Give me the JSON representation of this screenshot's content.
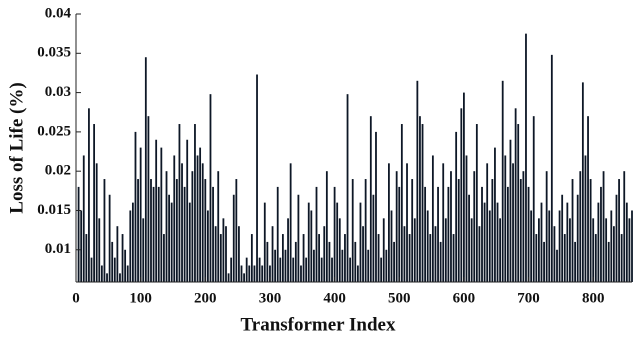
{
  "chart_data": {
    "type": "bar",
    "x_label": "Transformer Index",
    "y_label": "Loss of Life (%)",
    "color": "#0d1726",
    "xlim": [
      0,
      860
    ],
    "xticks": [
      0,
      100,
      200,
      300,
      400,
      500,
      600,
      700,
      800
    ],
    "ylim": [
      0.0059,
      0.04
    ],
    "yticks": [
      0.01,
      0.015,
      0.02,
      0.025,
      0.03,
      0.035,
      0.04
    ],
    "x": [
      4,
      8,
      12,
      16,
      20,
      24,
      28,
      32,
      36,
      40,
      44,
      48,
      52,
      56,
      60,
      64,
      68,
      72,
      76,
      80,
      84,
      88,
      92,
      96,
      100,
      104,
      108,
      112,
      116,
      120,
      124,
      128,
      132,
      136,
      140,
      144,
      148,
      152,
      156,
      160,
      164,
      168,
      172,
      176,
      180,
      184,
      188,
      192,
      196,
      200,
      204,
      208,
      212,
      216,
      220,
      224,
      228,
      232,
      236,
      240,
      244,
      248,
      252,
      256,
      260,
      264,
      268,
      272,
      276,
      280,
      284,
      288,
      292,
      296,
      300,
      304,
      308,
      312,
      316,
      320,
      324,
      328,
      332,
      336,
      340,
      344,
      348,
      352,
      356,
      360,
      364,
      368,
      372,
      376,
      380,
      384,
      388,
      392,
      396,
      400,
      404,
      408,
      412,
      416,
      420,
      424,
      428,
      432,
      436,
      440,
      444,
      448,
      452,
      456,
      460,
      464,
      468,
      472,
      476,
      480,
      484,
      488,
      492,
      496,
      500,
      504,
      508,
      512,
      516,
      520,
      524,
      528,
      532,
      536,
      540,
      544,
      548,
      552,
      556,
      560,
      564,
      568,
      572,
      576,
      580,
      584,
      588,
      592,
      596,
      600,
      604,
      608,
      612,
      616,
      620,
      624,
      628,
      632,
      636,
      640,
      644,
      648,
      652,
      656,
      660,
      664,
      668,
      672,
      676,
      680,
      684,
      688,
      692,
      696,
      700,
      704,
      708,
      712,
      716,
      720,
      724,
      728,
      732,
      736,
      740,
      744,
      748,
      752,
      756,
      760,
      764,
      768,
      772,
      776,
      780,
      784,
      788,
      792,
      796,
      800,
      804,
      808,
      812,
      816,
      820,
      824,
      828,
      832,
      836,
      840,
      844,
      848,
      852,
      856,
      860
    ],
    "values": [
      0.018,
      0.015,
      0.022,
      0.012,
      0.028,
      0.009,
      0.026,
      0.021,
      0.014,
      0.008,
      0.019,
      0.007,
      0.017,
      0.011,
      0.009,
      0.013,
      0.007,
      0.012,
      0.01,
      0.008,
      0.015,
      0.016,
      0.025,
      0.019,
      0.023,
      0.014,
      0.0345,
      0.027,
      0.019,
      0.018,
      0.024,
      0.018,
      0.023,
      0.012,
      0.02,
      0.017,
      0.016,
      0.022,
      0.019,
      0.026,
      0.021,
      0.018,
      0.024,
      0.016,
      0.02,
      0.026,
      0.022,
      0.023,
      0.021,
      0.019,
      0.015,
      0.0298,
      0.018,
      0.013,
      0.02,
      0.012,
      0.014,
      0.013,
      0.007,
      0.009,
      0.017,
      0.019,
      0.013,
      0.008,
      0.007,
      0.009,
      0.008,
      0.012,
      0.008,
      0.0323,
      0.009,
      0.008,
      0.016,
      0.011,
      0.008,
      0.013,
      0.01,
      0.018,
      0.009,
      0.012,
      0.01,
      0.014,
      0.021,
      0.009,
      0.011,
      0.017,
      0.008,
      0.012,
      0.009,
      0.016,
      0.015,
      0.01,
      0.018,
      0.012,
      0.009,
      0.013,
      0.02,
      0.011,
      0.009,
      0.018,
      0.016,
      0.014,
      0.01,
      0.012,
      0.0298,
      0.009,
      0.019,
      0.011,
      0.008,
      0.016,
      0.013,
      0.019,
      0.01,
      0.027,
      0.017,
      0.025,
      0.012,
      0.009,
      0.014,
      0.01,
      0.021,
      0.015,
      0.011,
      0.02,
      0.018,
      0.026,
      0.013,
      0.021,
      0.012,
      0.019,
      0.014,
      0.0315,
      0.027,
      0.026,
      0.018,
      0.015,
      0.012,
      0.022,
      0.013,
      0.018,
      0.011,
      0.021,
      0.014,
      0.018,
      0.02,
      0.012,
      0.025,
      0.019,
      0.028,
      0.03,
      0.022,
      0.017,
      0.014,
      0.02,
      0.026,
      0.013,
      0.018,
      0.016,
      0.021,
      0.015,
      0.019,
      0.023,
      0.016,
      0.014,
      0.0315,
      0.022,
      0.018,
      0.024,
      0.021,
      0.028,
      0.026,
      0.019,
      0.02,
      0.0375,
      0.018,
      0.015,
      0.027,
      0.012,
      0.014,
      0.016,
      0.011,
      0.02,
      0.015,
      0.0348,
      0.013,
      0.01,
      0.015,
      0.017,
      0.012,
      0.016,
      0.014,
      0.019,
      0.011,
      0.017,
      0.02,
      0.0313,
      0.022,
      0.027,
      0.019,
      0.014,
      0.012,
      0.016,
      0.018,
      0.02,
      0.014,
      0.011,
      0.015,
      0.013,
      0.017,
      0.019,
      0.012,
      0.02,
      0.016,
      0.014,
      0.015
    ]
  }
}
